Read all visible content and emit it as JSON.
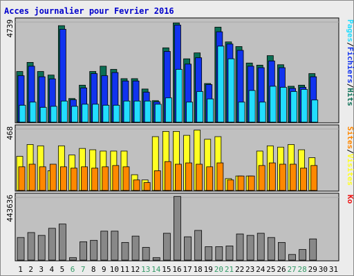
{
  "title": "Acces journalier pour Fevrier 2016",
  "colors": {
    "frame_border": "#888888",
    "frame_bg": "#ececec",
    "panel_bg": "#c0c0c0",
    "title": "#0000cc",
    "weekend_label": "#339966",
    "weekday_label": "#000000",
    "hits": "#0b6f55",
    "files": "#1133ee",
    "pages": "#22ddff",
    "visits": "#ffff22",
    "sites": "#ff8800",
    "kb": "#ee1111"
  },
  "chart_data": [
    {
      "type": "bar",
      "panel": "top",
      "ytick_label": "4739",
      "ylim": [
        0,
        4739
      ],
      "legend": [
        "Pages",
        "/",
        "Fichiers",
        "/",
        "Hits"
      ],
      "legend_colors": [
        "#22ddff",
        "#000000",
        "#1133ee",
        "#000000",
        "#0b6f55"
      ],
      "categories": [
        "1",
        "2",
        "3",
        "4",
        "5",
        "6",
        "7",
        "8",
        "9",
        "10",
        "11",
        "12",
        "13",
        "14",
        "15",
        "16",
        "17",
        "18",
        "19",
        "20",
        "21",
        "22",
        "23",
        "24",
        "25",
        "26",
        "27",
        "28",
        "29",
        "30",
        "31"
      ],
      "series": [
        {
          "name": "Hits",
          "values": [
            2400,
            2830,
            2400,
            2230,
            4570,
            1120,
            1750,
            2400,
            2650,
            2500,
            2060,
            2060,
            1570,
            1020,
            3520,
            4700,
            3000,
            3280,
            1830,
            4500,
            3800,
            3580,
            2800,
            2700,
            3150,
            2720,
            1700,
            1750,
            2300,
            null,
            null
          ]
        },
        {
          "name": "Fichiers",
          "values": [
            2200,
            2650,
            2150,
            2050,
            4400,
            1060,
            1620,
            2300,
            2200,
            2350,
            1950,
            1950,
            1420,
            960,
            3350,
            4600,
            2750,
            3050,
            1780,
            4280,
            3700,
            3400,
            2650,
            2580,
            2900,
            2580,
            1600,
            1650,
            2150,
            null,
            null
          ]
        },
        {
          "name": "Pages",
          "values": [
            800,
            950,
            700,
            750,
            1000,
            750,
            850,
            850,
            800,
            800,
            1000,
            1000,
            1000,
            850,
            1150,
            2500,
            950,
            1450,
            1100,
            3600,
            3000,
            950,
            1500,
            950,
            1700,
            1650,
            1450,
            1550,
            1050,
            null,
            null
          ]
        }
      ]
    },
    {
      "type": "bar",
      "panel": "middle",
      "ytick_label": "468",
      "ylim": [
        0,
        468
      ],
      "legend": [
        "Sites",
        "/",
        "Visites"
      ],
      "legend_colors": [
        "#ff8800",
        "#000000",
        "#ffff22"
      ],
      "categories": [
        "1",
        "2",
        "3",
        "4",
        "5",
        "6",
        "7",
        "8",
        "9",
        "10",
        "11",
        "12",
        "13",
        "14",
        "15",
        "16",
        "17",
        "18",
        "19",
        "20",
        "21",
        "22",
        "23",
        "24",
        "25",
        "26",
        "27",
        "28",
        "29",
        "30",
        "31"
      ],
      "series": [
        {
          "name": "Visites",
          "values": [
            260,
            350,
            340,
            150,
            340,
            270,
            320,
            310,
            300,
            300,
            300,
            120,
            80,
            410,
            450,
            450,
            420,
            460,
            390,
            410,
            90,
            110,
            110,
            300,
            340,
            330,
            350,
            310,
            250,
            null,
            null
          ]
        },
        {
          "name": "Sites",
          "values": [
            180,
            200,
            180,
            200,
            180,
            170,
            180,
            170,
            180,
            190,
            180,
            80,
            60,
            150,
            220,
            200,
            210,
            200,
            180,
            210,
            80,
            110,
            110,
            190,
            210,
            200,
            200,
            170,
            190,
            null,
            null
          ]
        }
      ]
    },
    {
      "type": "bar",
      "panel": "bottom",
      "ytick_label": "443636",
      "ylim": [
        0,
        443636
      ],
      "legend": [
        "Ko"
      ],
      "legend_colors": [
        "#ee1111"
      ],
      "categories": [
        "1",
        "2",
        "3",
        "4",
        "5",
        "6",
        "7",
        "8",
        "9",
        "10",
        "11",
        "12",
        "13",
        "14",
        "15",
        "16",
        "17",
        "18",
        "19",
        "20",
        "21",
        "22",
        "23",
        "24",
        "25",
        "26",
        "27",
        "28",
        "29",
        "30",
        "31"
      ],
      "series": [
        {
          "name": "Ko",
          "values": [
            160000,
            195000,
            175000,
            225000,
            255000,
            18000,
            130000,
            140000,
            205000,
            205000,
            125000,
            170000,
            90000,
            18000,
            190000,
            450000,
            165000,
            210000,
            95000,
            95000,
            100000,
            185000,
            175000,
            190000,
            160000,
            125000,
            40000,
            75000,
            150000,
            null,
            null
          ]
        }
      ]
    }
  ],
  "days": [
    {
      "label": "1",
      "weekend": false
    },
    {
      "label": "2",
      "weekend": false
    },
    {
      "label": "3",
      "weekend": false
    },
    {
      "label": "4",
      "weekend": false
    },
    {
      "label": "5",
      "weekend": false
    },
    {
      "label": "6",
      "weekend": true
    },
    {
      "label": "7",
      "weekend": true
    },
    {
      "label": "8",
      "weekend": false
    },
    {
      "label": "9",
      "weekend": false
    },
    {
      "label": "10",
      "weekend": false
    },
    {
      "label": "11",
      "weekend": false
    },
    {
      "label": "12",
      "weekend": false
    },
    {
      "label": "13",
      "weekend": true
    },
    {
      "label": "14",
      "weekend": true
    },
    {
      "label": "15",
      "weekend": false
    },
    {
      "label": "16",
      "weekend": false
    },
    {
      "label": "17",
      "weekend": false
    },
    {
      "label": "18",
      "weekend": false
    },
    {
      "label": "19",
      "weekend": false
    },
    {
      "label": "20",
      "weekend": true
    },
    {
      "label": "21",
      "weekend": true
    },
    {
      "label": "22",
      "weekend": false
    },
    {
      "label": "23",
      "weekend": false
    },
    {
      "label": "24",
      "weekend": false
    },
    {
      "label": "25",
      "weekend": false
    },
    {
      "label": "26",
      "weekend": false
    },
    {
      "label": "27",
      "weekend": true
    },
    {
      "label": "28",
      "weekend": true
    },
    {
      "label": "29",
      "weekend": false
    },
    {
      "label": "30",
      "weekend": false
    },
    {
      "label": "31",
      "weekend": false
    }
  ]
}
